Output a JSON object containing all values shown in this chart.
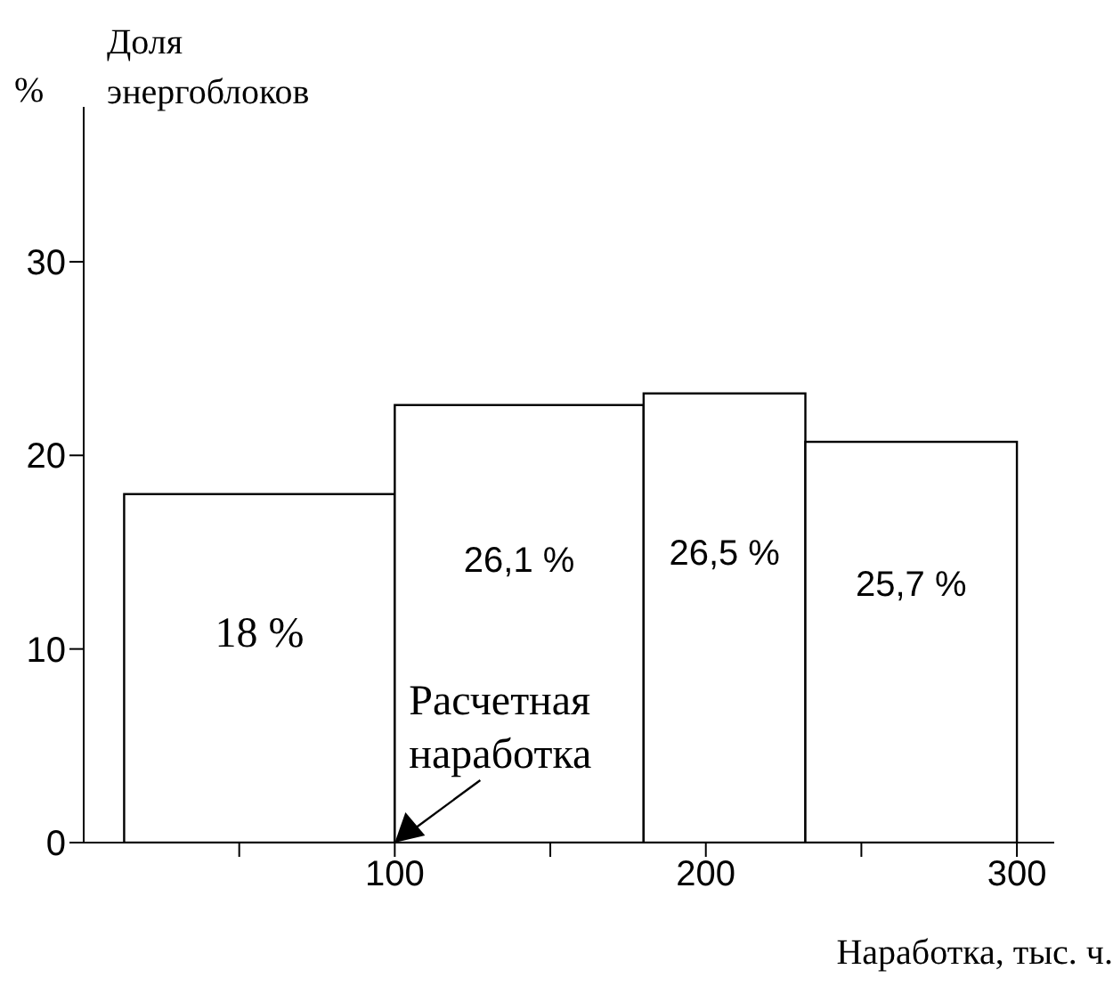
{
  "chart_data": {
    "type": "histogram",
    "title": "Доля энергоблоков",
    "ylabel": "%",
    "xlabel": "Наработка, тыс. ч.",
    "bins": [
      13,
      100,
      180,
      232,
      300
    ],
    "values": [
      18,
      22.6,
      23.2,
      20.7
    ],
    "color": "#ffffff",
    "xlim": [
      0,
      312
    ],
    "xticks": [
      {
        "value": 50,
        "label": null
      },
      100,
      {
        "value": 150,
        "label": null
      },
      200,
      {
        "value": 250,
        "label": null
      },
      300
    ],
    "ylim": [
      0,
      38
    ],
    "yticks": [
      0,
      10,
      20,
      30
    ],
    "annotations": [
      "18 %",
      "26,1 %",
      "26,5 %",
      "25,7 %",
      {
        "text": "Расчетная наработка",
        "x": 100,
        "y": 0
      }
    ],
    "grid": false,
    "legend": false
  }
}
